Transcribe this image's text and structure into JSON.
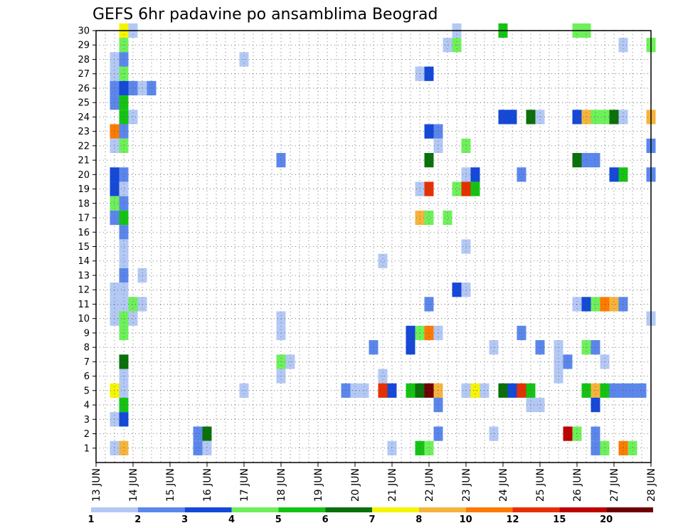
{
  "chart_data": {
    "type": "heatmap",
    "title": "GEFS 6hr padavine po ansamblima Beograd",
    "x_ticks": [
      "13 JUN",
      "14 JUN",
      "15 JUN",
      "16 JUN",
      "17 JUN",
      "18 JUN",
      "19 JUN",
      "20 JUN",
      "21 JUN",
      "22 JUN",
      "23 JUN",
      "24 JUN",
      "25 JUN",
      "26 JUN",
      "27 JUN",
      "28 JUN"
    ],
    "y_ticks": [
      "1",
      "2",
      "3",
      "4",
      "5",
      "6",
      "7",
      "8",
      "9",
      "10",
      "11",
      "12",
      "13",
      "14",
      "15",
      "16",
      "17",
      "18",
      "19",
      "20",
      "21",
      "22",
      "23",
      "24",
      "25",
      "26",
      "27",
      "28",
      "29",
      "30"
    ],
    "xlim_days": [
      13,
      28
    ],
    "ylim": [
      0,
      30
    ],
    "grid": true,
    "legend": {
      "position": "bottom",
      "labels": [
        "1",
        "2",
        "3",
        "4",
        "5",
        "6",
        "7",
        "8",
        "10",
        "12",
        "15",
        "20"
      ],
      "colors": [
        "#b3c8f5",
        "#5b86ec",
        "#1448d8",
        "#6ef05a",
        "#14c414",
        "#0a700a",
        "#f5f500",
        "#f5b43c",
        "#ff7a00",
        "#e63000",
        "#be0000",
        "#6e0000"
      ]
    },
    "cells_value_bin_by_member": [
      {
        "member": 30,
        "cells": [
          {
            "day": 13.75,
            "bin": 6
          },
          {
            "day": 14.0,
            "bin": 0
          },
          {
            "day": 22.75,
            "bin": 0
          },
          {
            "day": 24.0,
            "bin": 4
          },
          {
            "day": 26.0,
            "bin": 3
          },
          {
            "day": 26.25,
            "bin": 3
          }
        ]
      },
      {
        "member": 29,
        "cells": [
          {
            "day": 13.75,
            "bin": 3
          },
          {
            "day": 22.5,
            "bin": 0
          },
          {
            "day": 22.75,
            "bin": 3
          },
          {
            "day": 27.25,
            "bin": 0
          },
          {
            "day": 28.0,
            "bin": 3
          }
        ]
      },
      {
        "member": 28,
        "cells": [
          {
            "day": 13.5,
            "bin": 0
          },
          {
            "day": 13.75,
            "bin": 1
          },
          {
            "day": 17.0,
            "bin": 0
          }
        ]
      },
      {
        "member": 27,
        "cells": [
          {
            "day": 13.5,
            "bin": 0
          },
          {
            "day": 13.75,
            "bin": 3
          },
          {
            "day": 21.75,
            "bin": 0
          },
          {
            "day": 22.0,
            "bin": 2
          }
        ]
      },
      {
        "member": 26,
        "cells": [
          {
            "day": 13.5,
            "bin": 1
          },
          {
            "day": 13.75,
            "bin": 2
          },
          {
            "day": 14.0,
            "bin": 1
          },
          {
            "day": 14.25,
            "bin": 0
          },
          {
            "day": 14.5,
            "bin": 1
          }
        ]
      },
      {
        "member": 25,
        "cells": [
          {
            "day": 13.5,
            "bin": 1
          },
          {
            "day": 13.75,
            "bin": 4
          }
        ]
      },
      {
        "member": 24,
        "cells": [
          {
            "day": 13.75,
            "bin": 4
          },
          {
            "day": 14.0,
            "bin": 0
          },
          {
            "day": 24.0,
            "bin": 2
          },
          {
            "day": 24.25,
            "bin": 2
          },
          {
            "day": 24.75,
            "bin": 5
          },
          {
            "day": 25.0,
            "bin": 0
          },
          {
            "day": 26.0,
            "bin": 2
          },
          {
            "day": 26.25,
            "bin": 7
          },
          {
            "day": 26.5,
            "bin": 3
          },
          {
            "day": 26.75,
            "bin": 3
          },
          {
            "day": 27.0,
            "bin": 5
          },
          {
            "day": 27.25,
            "bin": 0
          },
          {
            "day": 28.0,
            "bin": 7
          }
        ]
      },
      {
        "member": 23,
        "cells": [
          {
            "day": 13.5,
            "bin": 8
          },
          {
            "day": 13.75,
            "bin": 1
          },
          {
            "day": 22.0,
            "bin": 2
          },
          {
            "day": 22.25,
            "bin": 1
          }
        ]
      },
      {
        "member": 22,
        "cells": [
          {
            "day": 13.5,
            "bin": 0
          },
          {
            "day": 13.75,
            "bin": 3
          },
          {
            "day": 22.25,
            "bin": 0
          },
          {
            "day": 23.0,
            "bin": 3
          },
          {
            "day": 28.0,
            "bin": 1
          }
        ]
      },
      {
        "member": 21,
        "cells": [
          {
            "day": 18.0,
            "bin": 1
          },
          {
            "day": 22.0,
            "bin": 5
          },
          {
            "day": 26.0,
            "bin": 5
          },
          {
            "day": 26.25,
            "bin": 1
          },
          {
            "day": 26.5,
            "bin": 1
          }
        ]
      },
      {
        "member": 20,
        "cells": [
          {
            "day": 13.5,
            "bin": 2
          },
          {
            "day": 13.75,
            "bin": 1
          },
          {
            "day": 23.0,
            "bin": 0
          },
          {
            "day": 23.25,
            "bin": 2
          },
          {
            "day": 24.5,
            "bin": 1
          },
          {
            "day": 27.0,
            "bin": 2
          },
          {
            "day": 27.25,
            "bin": 4
          },
          {
            "day": 28.0,
            "bin": 1
          }
        ]
      },
      {
        "member": 19,
        "cells": [
          {
            "day": 13.5,
            "bin": 2
          },
          {
            "day": 13.75,
            "bin": 0
          },
          {
            "day": 21.75,
            "bin": 0
          },
          {
            "day": 22.0,
            "bin": 9
          },
          {
            "day": 22.75,
            "bin": 3
          },
          {
            "day": 23.0,
            "bin": 9
          },
          {
            "day": 23.25,
            "bin": 4
          }
        ]
      },
      {
        "member": 18,
        "cells": [
          {
            "day": 13.5,
            "bin": 3
          },
          {
            "day": 13.75,
            "bin": 1
          }
        ]
      },
      {
        "member": 17,
        "cells": [
          {
            "day": 13.5,
            "bin": 1
          },
          {
            "day": 13.75,
            "bin": 4
          },
          {
            "day": 21.75,
            "bin": 7
          },
          {
            "day": 22.0,
            "bin": 3
          },
          {
            "day": 22.5,
            "bin": 3
          }
        ]
      },
      {
        "member": 16,
        "cells": [
          {
            "day": 13.75,
            "bin": 1
          }
        ]
      },
      {
        "member": 15,
        "cells": [
          {
            "day": 13.75,
            "bin": 0
          },
          {
            "day": 23.0,
            "bin": 0
          }
        ]
      },
      {
        "member": 14,
        "cells": [
          {
            "day": 13.75,
            "bin": 0
          },
          {
            "day": 20.75,
            "bin": 0
          }
        ]
      },
      {
        "member": 13,
        "cells": [
          {
            "day": 13.75,
            "bin": 1
          },
          {
            "day": 14.25,
            "bin": 0
          }
        ]
      },
      {
        "member": 12,
        "cells": [
          {
            "day": 13.5,
            "bin": 0
          },
          {
            "day": 13.75,
            "bin": 0
          },
          {
            "day": 22.75,
            "bin": 2
          },
          {
            "day": 23.0,
            "bin": 0
          }
        ]
      },
      {
        "member": 11,
        "cells": [
          {
            "day": 13.5,
            "bin": 0
          },
          {
            "day": 13.75,
            "bin": 0
          },
          {
            "day": 14.0,
            "bin": 3
          },
          {
            "day": 14.25,
            "bin": 0
          },
          {
            "day": 22.0,
            "bin": 1
          },
          {
            "day": 26.0,
            "bin": 0
          },
          {
            "day": 26.25,
            "bin": 2
          },
          {
            "day": 26.5,
            "bin": 3
          },
          {
            "day": 26.75,
            "bin": 8
          },
          {
            "day": 27.0,
            "bin": 7
          },
          {
            "day": 27.25,
            "bin": 1
          }
        ]
      },
      {
        "member": 10,
        "cells": [
          {
            "day": 13.5,
            "bin": 0
          },
          {
            "day": 13.75,
            "bin": 3
          },
          {
            "day": 14.0,
            "bin": 0
          },
          {
            "day": 18.0,
            "bin": 0
          },
          {
            "day": 28.0,
            "bin": 0
          }
        ]
      },
      {
        "member": 9,
        "cells": [
          {
            "day": 13.75,
            "bin": 3
          },
          {
            "day": 18.0,
            "bin": 0
          },
          {
            "day": 21.5,
            "bin": 2
          },
          {
            "day": 21.75,
            "bin": 3
          },
          {
            "day": 22.0,
            "bin": 8
          },
          {
            "day": 22.25,
            "bin": 0
          },
          {
            "day": 24.5,
            "bin": 1
          }
        ]
      },
      {
        "member": 8,
        "cells": [
          {
            "day": 20.5,
            "bin": 1
          },
          {
            "day": 21.5,
            "bin": 2
          },
          {
            "day": 23.75,
            "bin": 0
          },
          {
            "day": 25.0,
            "bin": 1
          },
          {
            "day": 25.5,
            "bin": 0
          },
          {
            "day": 26.25,
            "bin": 3
          },
          {
            "day": 26.5,
            "bin": 1
          }
        ]
      },
      {
        "member": 7,
        "cells": [
          {
            "day": 13.75,
            "bin": 5
          },
          {
            "day": 18.0,
            "bin": 3
          },
          {
            "day": 18.25,
            "bin": 0
          },
          {
            "day": 25.5,
            "bin": 0
          },
          {
            "day": 25.75,
            "bin": 1
          },
          {
            "day": 26.75,
            "bin": 0
          }
        ]
      },
      {
        "member": 6,
        "cells": [
          {
            "day": 13.75,
            "bin": 0
          },
          {
            "day": 18.0,
            "bin": 0
          },
          {
            "day": 20.75,
            "bin": 0
          },
          {
            "day": 25.5,
            "bin": 0
          }
        ]
      },
      {
        "member": 5,
        "cells": [
          {
            "day": 13.5,
            "bin": 6
          },
          {
            "day": 13.75,
            "bin": 0
          },
          {
            "day": 17.0,
            "bin": 0
          },
          {
            "day": 19.75,
            "bin": 1
          },
          {
            "day": 20.0,
            "bin": 0
          },
          {
            "day": 20.25,
            "bin": 0
          },
          {
            "day": 20.75,
            "bin": 9
          },
          {
            "day": 21.0,
            "bin": 2
          },
          {
            "day": 21.5,
            "bin": 4
          },
          {
            "day": 21.75,
            "bin": 5
          },
          {
            "day": 22.0,
            "bin": 11
          },
          {
            "day": 22.25,
            "bin": 7
          },
          {
            "day": 23.0,
            "bin": 0
          },
          {
            "day": 23.25,
            "bin": 6
          },
          {
            "day": 23.5,
            "bin": 0
          },
          {
            "day": 24.0,
            "bin": 5
          },
          {
            "day": 24.25,
            "bin": 2
          },
          {
            "day": 24.5,
            "bin": 9
          },
          {
            "day": 24.75,
            "bin": 4
          },
          {
            "day": 26.25,
            "bin": 4
          },
          {
            "day": 26.5,
            "bin": 7
          },
          {
            "day": 26.75,
            "bin": 4
          },
          {
            "day": 27.0,
            "bin": 1
          },
          {
            "day": 27.25,
            "bin": 1
          },
          {
            "day": 27.5,
            "bin": 1
          },
          {
            "day": 27.75,
            "bin": 1
          }
        ]
      },
      {
        "member": 4,
        "cells": [
          {
            "day": 13.75,
            "bin": 4
          },
          {
            "day": 22.25,
            "bin": 1
          },
          {
            "day": 24.75,
            "bin": 0
          },
          {
            "day": 25.0,
            "bin": 0
          },
          {
            "day": 26.5,
            "bin": 2
          }
        ]
      },
      {
        "member": 3,
        "cells": [
          {
            "day": 13.5,
            "bin": 0
          },
          {
            "day": 13.75,
            "bin": 2
          }
        ]
      },
      {
        "member": 2,
        "cells": [
          {
            "day": 15.75,
            "bin": 1
          },
          {
            "day": 16.0,
            "bin": 5
          },
          {
            "day": 22.25,
            "bin": 1
          },
          {
            "day": 23.75,
            "bin": 0
          },
          {
            "day": 25.75,
            "bin": 10
          },
          {
            "day": 26.0,
            "bin": 3
          },
          {
            "day": 26.5,
            "bin": 1
          }
        ]
      },
      {
        "member": 1,
        "cells": [
          {
            "day": 13.5,
            "bin": 0
          },
          {
            "day": 13.75,
            "bin": 7
          },
          {
            "day": 15.75,
            "bin": 1
          },
          {
            "day": 16.0,
            "bin": 0
          },
          {
            "day": 21.0,
            "bin": 0
          },
          {
            "day": 21.75,
            "bin": 4
          },
          {
            "day": 22.0,
            "bin": 3
          },
          {
            "day": 26.5,
            "bin": 1
          },
          {
            "day": 26.75,
            "bin": 3
          },
          {
            "day": 27.25,
            "bin": 8
          },
          {
            "day": 27.5,
            "bin": 3
          }
        ]
      }
    ]
  }
}
